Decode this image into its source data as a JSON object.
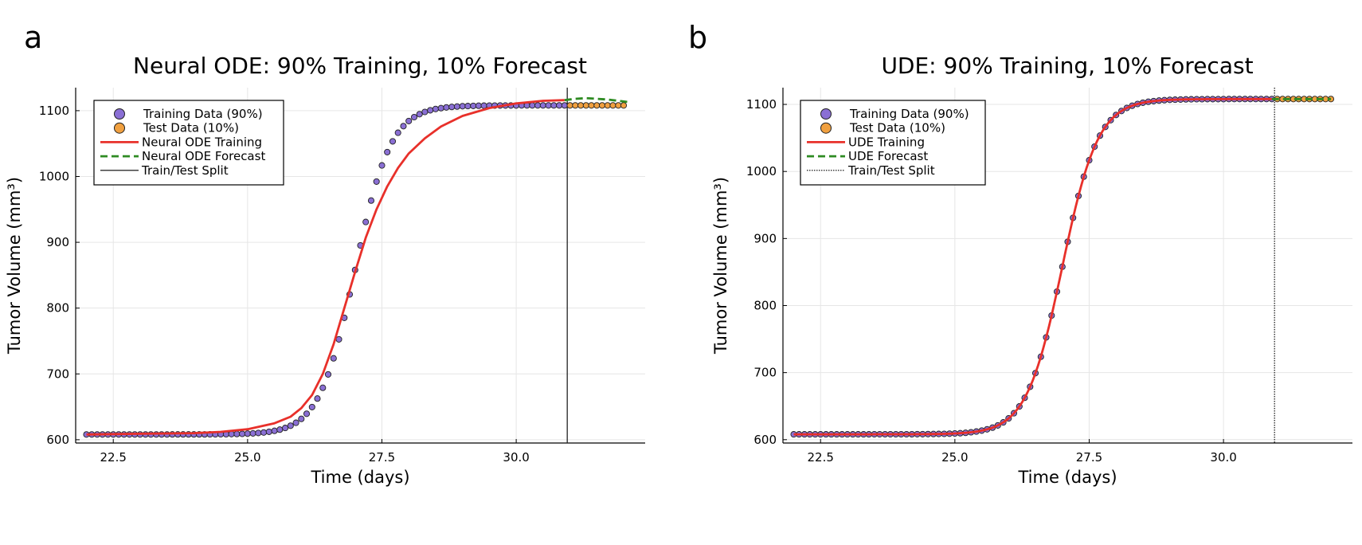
{
  "figure": {
    "panels": [
      {
        "label": "a"
      },
      {
        "label": "b"
      }
    ]
  },
  "chart_data": [
    {
      "type": "scatter",
      "panel_label": "a",
      "title": "Neural ODE: 90% Training, 10% Forecast",
      "xlabel": "Time (days)",
      "ylabel": "Tumor Volume (mm³)",
      "xlim": [
        21.8,
        32.4
      ],
      "ylim": [
        595,
        1135
      ],
      "xticks": [
        22.5,
        25.0,
        27.5,
        30.0
      ],
      "xtick_labels": [
        "22.5",
        "25.0",
        "27.5",
        "30.0"
      ],
      "yticks": [
        600,
        700,
        800,
        900,
        1000,
        1100
      ],
      "ytick_labels": [
        "600",
        "700",
        "800",
        "900",
        "1000",
        "1100"
      ],
      "grid": true,
      "legend_position": "top-left",
      "curve_model": {
        "form": "logistic",
        "baseline": 608,
        "amplitude": 500,
        "midpoint": 27.0,
        "rate": 3.0
      },
      "legend": [
        {
          "label": "Training Data (90%)",
          "kind": "marker",
          "color": "#8a6fd4"
        },
        {
          "label": "Test Data (10%)",
          "kind": "marker",
          "color": "#f0a040"
        },
        {
          "label": "Neural ODE Training",
          "kind": "solid",
          "color": "#e8302a"
        },
        {
          "label": "Neural ODE Forecast",
          "kind": "dashed",
          "color": "#2e8b22"
        },
        {
          "label": "Train/Test Split",
          "kind": "thin",
          "color": "#000000"
        }
      ],
      "series": [
        {
          "name": "Training Data (90%)",
          "type": "scatter",
          "color": "#8a6fd4",
          "x_start": 22.0,
          "x_end": 30.9,
          "step": 0.1
        },
        {
          "name": "Test Data (10%)",
          "type": "scatter",
          "color": "#f0a040",
          "x_start": 31.0,
          "x_end": 32.0,
          "step": 0.1
        },
        {
          "name": "Neural ODE Training",
          "type": "line",
          "color": "#e8302a",
          "x": [
            22.0,
            23.0,
            24.0,
            24.5,
            25.0,
            25.5,
            25.8,
            26.0,
            26.2,
            26.4,
            26.6,
            26.8,
            27.0,
            27.2,
            27.4,
            27.6,
            27.8,
            28.0,
            28.3,
            28.6,
            29.0,
            29.5,
            30.0,
            30.5,
            30.9
          ],
          "y": [
            608,
            609,
            610,
            612,
            616,
            625,
            635,
            648,
            668,
            700,
            745,
            800,
            855,
            907,
            950,
            985,
            1013,
            1035,
            1058,
            1076,
            1092,
            1104,
            1111,
            1115,
            1116
          ]
        },
        {
          "name": "Neural ODE Forecast",
          "type": "line",
          "color": "#2e8b22",
          "x": [
            30.9,
            31.1,
            31.3,
            31.5,
            31.7,
            31.9,
            32.1
          ],
          "y": [
            1116,
            1118,
            1119,
            1118,
            1117,
            1115,
            1113
          ]
        }
      ],
      "split_x": 30.95
    },
    {
      "type": "scatter",
      "panel_label": "b",
      "title": "UDE: 90% Training, 10% Forecast",
      "xlabel": "Time (days)",
      "ylabel": "Tumor Volume (mm³)",
      "xlim": [
        21.8,
        32.4
      ],
      "ylim": [
        595,
        1125
      ],
      "xticks": [
        22.5,
        25.0,
        27.5,
        30.0
      ],
      "xtick_labels": [
        "22.5",
        "25.0",
        "27.5",
        "30.0"
      ],
      "yticks": [
        600,
        700,
        800,
        900,
        1000,
        1100
      ],
      "ytick_labels": [
        "600",
        "700",
        "800",
        "900",
        "1000",
        "1100"
      ],
      "grid": true,
      "legend_position": "top-left",
      "curve_model": {
        "form": "logistic",
        "baseline": 608,
        "amplitude": 500,
        "midpoint": 27.0,
        "rate": 3.0
      },
      "legend": [
        {
          "label": "Training Data (90%)",
          "kind": "marker",
          "color": "#8a6fd4"
        },
        {
          "label": "Test Data (10%)",
          "kind": "marker",
          "color": "#f0a040"
        },
        {
          "label": "UDE Training",
          "kind": "solid",
          "color": "#e8302a"
        },
        {
          "label": "UDE Forecast",
          "kind": "dashed",
          "color": "#2e8b22"
        },
        {
          "label": "Train/Test Split",
          "kind": "dotted",
          "color": "#000000"
        }
      ],
      "series": [
        {
          "name": "Training Data (90%)",
          "type": "scatter",
          "color": "#8a6fd4",
          "x_start": 22.0,
          "x_end": 30.9,
          "step": 0.1
        },
        {
          "name": "Test Data (10%)",
          "type": "scatter",
          "color": "#f0a040",
          "x_start": 31.0,
          "x_end": 32.0,
          "step": 0.1
        },
        {
          "name": "UDE Training",
          "type": "line",
          "color": "#e8302a",
          "follows_model": true,
          "x_start": 22.0,
          "x_end": 30.9
        },
        {
          "name": "UDE Forecast",
          "type": "line",
          "color": "#2e8b22",
          "follows_model": true,
          "x_start": 30.9,
          "x_end": 32.0
        }
      ],
      "split_x": 30.95
    }
  ]
}
